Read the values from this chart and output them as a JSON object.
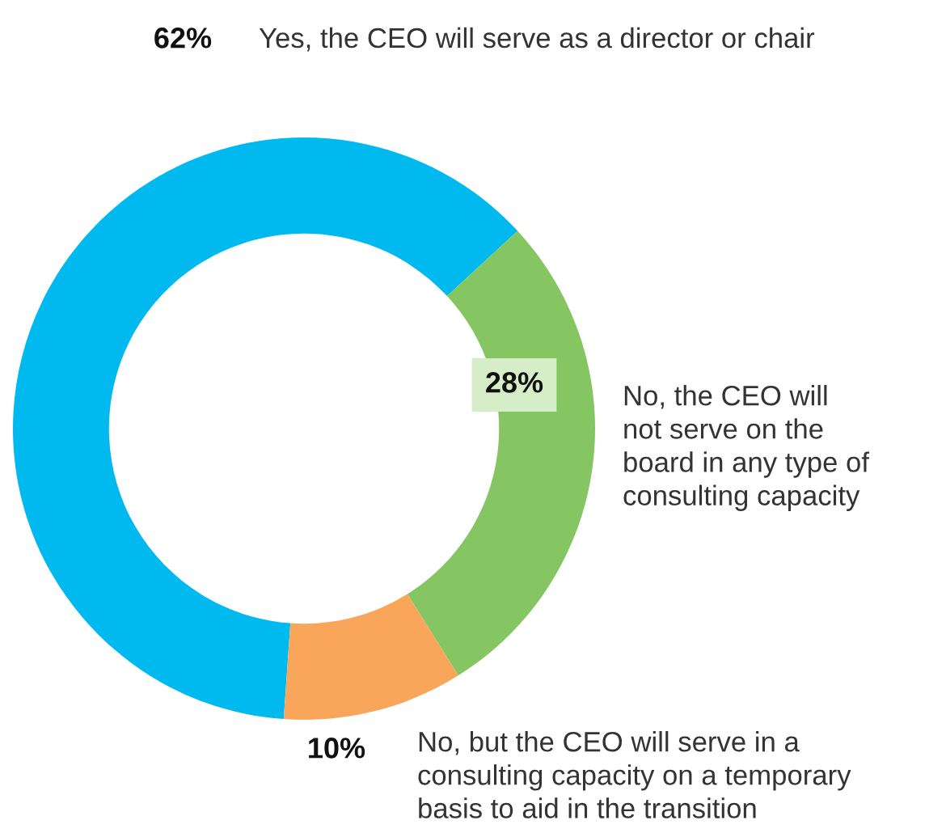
{
  "chart_data": {
    "type": "donut",
    "categories": [
      "Yes, the CEO will serve as a director or chair",
      "No, the CEO will\nnot serve on the\nboard in any type of\nconsulting capacity",
      "No, but the CEO will serve in a\nconsulting capacity on a temporary\nbasis to aid in the transition"
    ],
    "values": [
      62,
      28,
      10
    ],
    "colors": [
      "#00b9ef",
      "#86c662",
      "#f9a65a"
    ],
    "value_labels": [
      "62%",
      "28%",
      "10%"
    ],
    "legend": false
  }
}
